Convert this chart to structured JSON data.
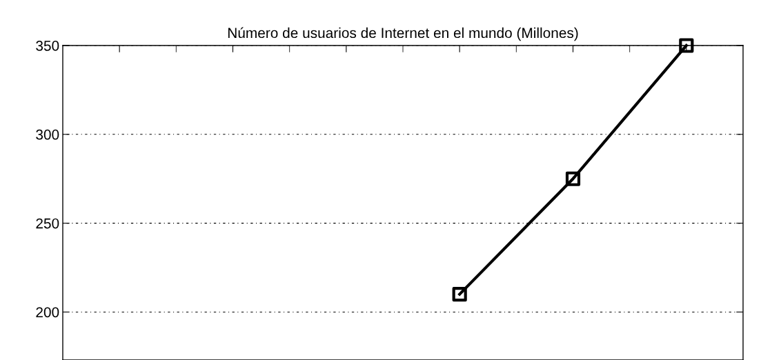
{
  "chart_data": {
    "type": "line",
    "title": "Número de usuarios de Internet en el mundo (Millones)",
    "categories": [
      null,
      null,
      null,
      null,
      null,
      null
    ],
    "series": [
      {
        "color": "#000000",
        "values": [
          null,
          null,
          null,
          210,
          275,
          350
        ]
      }
    ],
    "ylim": [
      173,
      350
    ],
    "yticks": [
      200,
      250,
      300,
      350
    ],
    "grid": "y",
    "marker": "square",
    "line_style": "solid"
  }
}
